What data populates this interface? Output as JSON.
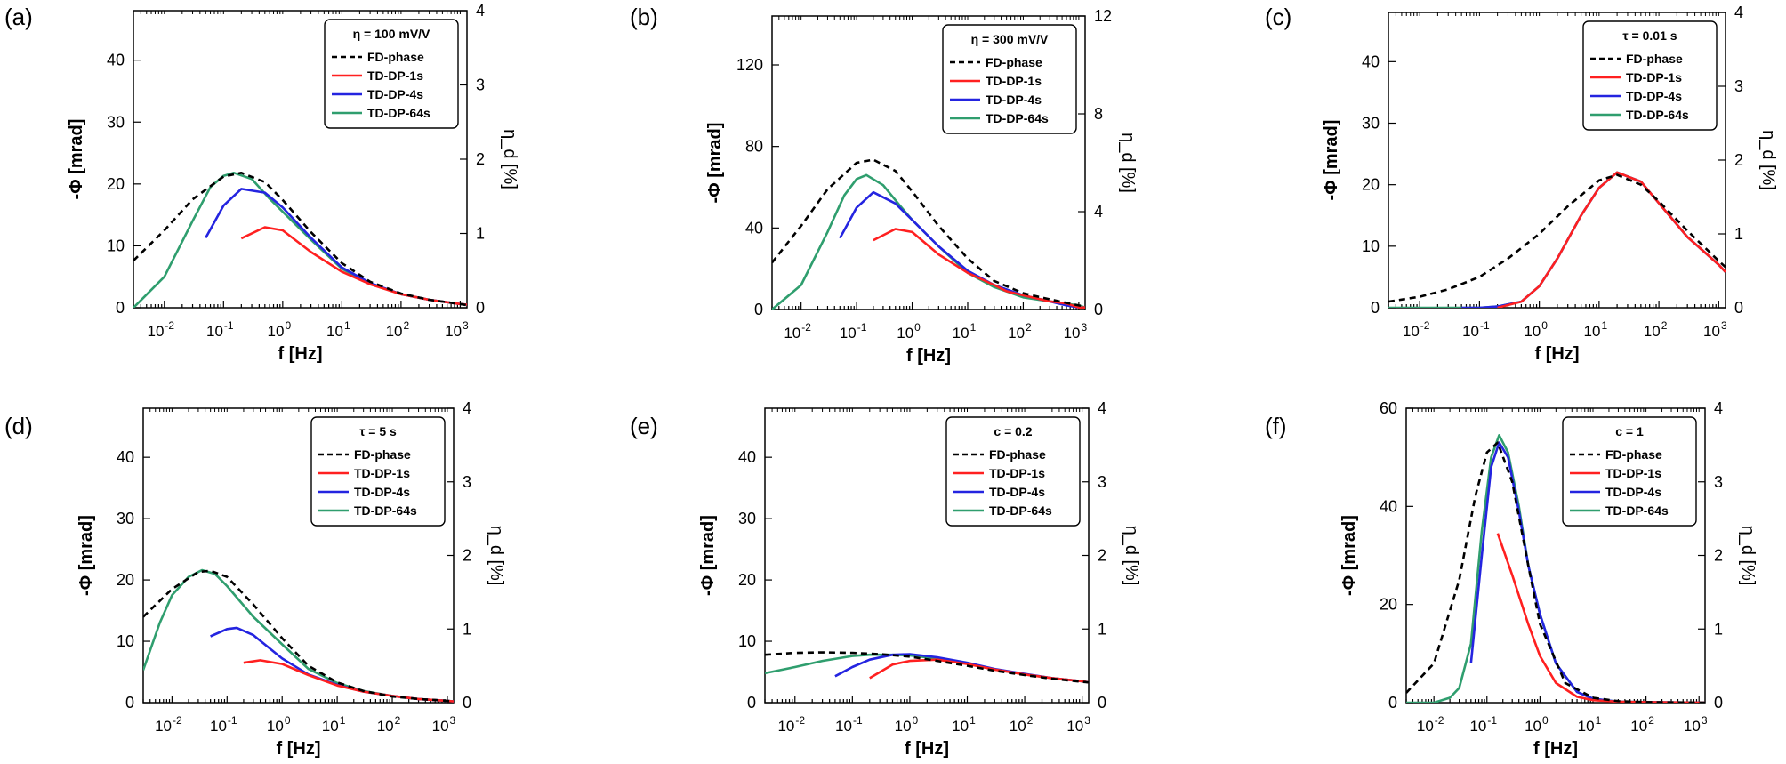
{
  "chart_data": [
    {
      "panel": "(a)",
      "type": "line",
      "xscale": "log",
      "xlabel": "f [Hz]",
      "ylabel": "-Φ [mrad]",
      "y2label": "η_d [%]",
      "xlim": [
        0.003,
        1300
      ],
      "ylim": [
        0,
        48
      ],
      "y2lim": [
        0,
        4
      ],
      "yticks": [
        0,
        10,
        20,
        30,
        40
      ],
      "y2ticks": [
        0,
        1,
        2,
        3,
        4
      ],
      "legend_title": "η = 100 mV/V",
      "legend_position": "top-right",
      "series": [
        {
          "name": "FD-phase",
          "color": "#000000",
          "dash": true,
          "x": [
            0.003,
            0.01,
            0.03,
            0.1,
            0.2,
            0.5,
            1,
            3,
            10,
            30,
            100,
            300,
            1000,
            1300
          ],
          "y": [
            7.6,
            12.5,
            17.5,
            21.2,
            21.8,
            20.3,
            17.4,
            12.2,
            7.2,
            4.2,
            2.3,
            1.3,
            0.6,
            0.4
          ]
        },
        {
          "name": "TD-DP-1s",
          "color": "#ff2020",
          "dash": false,
          "x": [
            0.2,
            0.5,
            1,
            3,
            10,
            30,
            100,
            300,
            1000,
            1300
          ],
          "y": [
            11.2,
            13.0,
            12.5,
            9.0,
            5.8,
            3.8,
            2.2,
            1.3,
            0.6,
            0.5
          ]
        },
        {
          "name": "TD-DP-4s",
          "color": "#2424e0",
          "dash": false,
          "x": [
            0.05,
            0.1,
            0.2,
            0.5,
            1,
            3,
            10,
            30,
            100,
            300,
            1000,
            1300
          ],
          "y": [
            11.3,
            16.5,
            19.2,
            18.6,
            16.2,
            11.3,
            6.5,
            4.0,
            2.2,
            1.3,
            0.6,
            0.5
          ]
        },
        {
          "name": "TD-DP-64s",
          "color": "#2f9e6e",
          "dash": false,
          "x": [
            0.003,
            0.01,
            0.03,
            0.06,
            0.1,
            0.15,
            0.3,
            0.6,
            1,
            3,
            10,
            30,
            100,
            300,
            1000,
            1300
          ],
          "y": [
            0,
            5,
            14,
            19.5,
            21.3,
            21.8,
            20.8,
            17.6,
            15.5,
            11,
            6.3,
            3.9,
            2.2,
            1.3,
            0.6,
            0.5
          ]
        }
      ]
    },
    {
      "panel": "(b)",
      "type": "line",
      "xscale": "log",
      "xlabel": "f [Hz]",
      "ylabel": "-Φ [mrad]",
      "y2label": "η_d [%]",
      "xlim": [
        0.003,
        1300
      ],
      "ylim": [
        0,
        144
      ],
      "y2lim": [
        0,
        12
      ],
      "yticks": [
        0,
        40,
        80,
        120
      ],
      "y2ticks": [
        0,
        4,
        8,
        12
      ],
      "legend_title": "η = 300 mV/V",
      "legend_position": "top-right",
      "series": [
        {
          "name": "FD-phase",
          "color": "#000000",
          "dash": true,
          "x": [
            0.003,
            0.01,
            0.03,
            0.1,
            0.2,
            0.5,
            1,
            3,
            10,
            30,
            100,
            300,
            1000,
            1300
          ],
          "y": [
            23,
            41,
            59,
            72,
            73.5,
            68,
            58,
            41,
            25,
            14,
            8,
            5,
            2,
            1.5
          ]
        },
        {
          "name": "TD-DP-1s",
          "color": "#ff2020",
          "dash": false,
          "x": [
            0.2,
            0.5,
            1,
            3,
            10,
            30,
            50,
            100,
            300,
            600,
            1000,
            1300
          ],
          "y": [
            34,
            39.5,
            38,
            27,
            18,
            12,
            9,
            7,
            4,
            3,
            1,
            1
          ]
        },
        {
          "name": "TD-DP-4s",
          "color": "#2424e0",
          "dash": false,
          "x": [
            0.05,
            0.1,
            0.2,
            0.5,
            1,
            3,
            10,
            30,
            100,
            300,
            600,
            1000,
            1300
          ],
          "y": [
            35,
            50,
            57.5,
            52,
            44,
            31,
            19,
            12,
            7,
            4,
            2,
            1,
            1
          ]
        },
        {
          "name": "TD-DP-64s",
          "color": "#2f9e6e",
          "dash": false,
          "x": [
            0.003,
            0.01,
            0.03,
            0.06,
            0.1,
            0.15,
            0.3,
            0.6,
            1,
            3,
            10,
            30,
            100,
            300,
            1000,
            1300
          ],
          "y": [
            0,
            12,
            38,
            56,
            64,
            66,
            61,
            51,
            44,
            31,
            18,
            11,
            6,
            4,
            2,
            1
          ]
        }
      ]
    },
    {
      "panel": "(c)",
      "type": "line",
      "xscale": "log",
      "xlabel": "f [Hz]",
      "ylabel": "-Φ [mrad]",
      "y2label": "η_d [%]",
      "xlim": [
        0.003,
        1300
      ],
      "ylim": [
        0,
        48
      ],
      "y2lim": [
        0,
        4
      ],
      "yticks": [
        0,
        10,
        20,
        30,
        40
      ],
      "y2ticks": [
        0,
        1,
        2,
        3,
        4
      ],
      "legend_title": "τ = 0.01 s",
      "legend_position": "top-right",
      "series": [
        {
          "name": "FD-phase",
          "color": "#000000",
          "dash": true,
          "x": [
            0.003,
            0.01,
            0.03,
            0.1,
            0.3,
            1,
            3,
            10,
            20,
            50,
            100,
            300,
            1000,
            1300
          ],
          "y": [
            1,
            1.8,
            3.0,
            5.0,
            8.0,
            12.0,
            16.5,
            20.7,
            21.6,
            20.0,
            17.3,
            12.5,
            7.6,
            6.6
          ]
        },
        {
          "name": "TD-DP-1s",
          "color": "#ff2020",
          "dash": false,
          "x": [
            0.2,
            0.5,
            1,
            2,
            5,
            10,
            20,
            50,
            100,
            300,
            1000,
            1300
          ],
          "y": [
            0,
            1,
            3.5,
            8,
            15,
            19.5,
            22,
            20.5,
            17,
            11.5,
            7,
            5.8
          ]
        },
        {
          "name": "TD-DP-4s",
          "color": "#2424e0",
          "dash": false,
          "x": [
            0.05,
            0.1,
            0.2,
            0.5,
            1,
            2,
            5,
            10,
            20,
            50,
            100,
            300,
            1000,
            1300
          ],
          "y": [
            0,
            0,
            0.2,
            1,
            3.5,
            8,
            15,
            19.5,
            22,
            20.5,
            17,
            11.5,
            7,
            5.8
          ]
        },
        {
          "name": "TD-DP-64s",
          "color": "#2f9e6e",
          "dash": false,
          "x": [
            0.003,
            0.01,
            0.1,
            0.2,
            0.5,
            1,
            2,
            5,
            10,
            20,
            50,
            100,
            300,
            1000,
            1300
          ],
          "y": [
            0,
            0,
            0,
            0.2,
            1,
            3.5,
            8,
            15,
            19.5,
            22,
            20.5,
            17,
            11.5,
            7,
            5.8
          ]
        }
      ]
    },
    {
      "panel": "(d)",
      "type": "line",
      "xscale": "log",
      "xlabel": "f [Hz]",
      "ylabel": "-Φ [mrad]",
      "y2label": "η_d [%]",
      "xlim": [
        0.003,
        1300
      ],
      "ylim": [
        0,
        48
      ],
      "y2lim": [
        0,
        4
      ],
      "yticks": [
        0,
        10,
        20,
        30,
        40
      ],
      "y2ticks": [
        0,
        1,
        2,
        3,
        4
      ],
      "legend_title": "τ = 5 s",
      "legend_position": "top-right",
      "series": [
        {
          "name": "FD-phase",
          "color": "#000000",
          "dash": true,
          "x": [
            0.003,
            0.01,
            0.03,
            0.05,
            0.1,
            0.3,
            1,
            3,
            10,
            30,
            100,
            300,
            1000,
            1300
          ],
          "y": [
            14,
            18.5,
            21.3,
            21.5,
            20.5,
            16,
            10.5,
            6,
            3.3,
            1.9,
            1.0,
            0.6,
            0.3,
            0.2
          ]
        },
        {
          "name": "TD-DP-1s",
          "color": "#ff2020",
          "dash": false,
          "x": [
            0.2,
            0.4,
            1,
            3,
            10,
            30,
            100,
            300,
            1000,
            1300
          ],
          "y": [
            6.5,
            6.9,
            6.3,
            4.5,
            2.8,
            1.8,
            1.1,
            0.6,
            0.3,
            0.2
          ]
        },
        {
          "name": "TD-DP-4s",
          "color": "#2424e0",
          "dash": false,
          "x": [
            0.05,
            0.1,
            0.15,
            0.3,
            1,
            3,
            10,
            30,
            100,
            300,
            1000,
            1300
          ],
          "y": [
            10.8,
            12,
            12.2,
            11,
            7.2,
            4.6,
            2.9,
            1.8,
            1.1,
            0.6,
            0.3,
            0.2
          ]
        },
        {
          "name": "TD-DP-64s",
          "color": "#2f9e6e",
          "dash": false,
          "x": [
            0.003,
            0.006,
            0.01,
            0.02,
            0.035,
            0.06,
            0.1,
            0.3,
            1,
            3,
            10,
            30,
            100,
            300,
            1000,
            1300
          ],
          "y": [
            5.3,
            13,
            17.5,
            20.5,
            21.6,
            21,
            19,
            14,
            9.5,
            5.5,
            3.2,
            1.9,
            1.1,
            0.6,
            0.3,
            0.2
          ]
        }
      ]
    },
    {
      "panel": "(e)",
      "type": "line",
      "xscale": "log",
      "xlabel": "f [Hz]",
      "ylabel": "-Φ [mrad]",
      "y2label": "η_d [%]",
      "xlim": [
        0.003,
        1300
      ],
      "ylim": [
        0,
        48
      ],
      "y2lim": [
        0,
        4
      ],
      "yticks": [
        0,
        10,
        20,
        30,
        40
      ],
      "y2ticks": [
        0,
        1,
        2,
        3,
        4
      ],
      "legend_title": "c = 0.2",
      "legend_position": "top-right",
      "series": [
        {
          "name": "FD-phase",
          "color": "#000000",
          "dash": true,
          "x": [
            0.003,
            0.01,
            0.03,
            0.1,
            0.3,
            1,
            3,
            10,
            30,
            100,
            300,
            1000,
            1300
          ],
          "y": [
            7.8,
            8.1,
            8.2,
            8.1,
            7.9,
            7.5,
            6.8,
            6.0,
            5.2,
            4.5,
            3.9,
            3.4,
            3.3
          ]
        },
        {
          "name": "TD-DP-1s",
          "color": "#ff2020",
          "dash": false,
          "x": [
            0.2,
            0.5,
            1,
            3,
            10,
            30,
            100,
            300,
            1000,
            1300
          ],
          "y": [
            4,
            6.2,
            6.8,
            7.0,
            6.3,
            5.4,
            4.6,
            4.0,
            3.5,
            3.3
          ]
        },
        {
          "name": "TD-DP-4s",
          "color": "#2424e0",
          "dash": false,
          "x": [
            0.05,
            0.1,
            0.2,
            0.5,
            1,
            3,
            10,
            30,
            100,
            300,
            1000,
            1300
          ],
          "y": [
            4.3,
            5.8,
            7.0,
            7.8,
            7.9,
            7.4,
            6.5,
            5.5,
            4.7,
            4.0,
            3.5,
            3.3
          ]
        },
        {
          "name": "TD-DP-64s",
          "color": "#2f9e6e",
          "dash": false,
          "x": [
            0.003,
            0.01,
            0.03,
            0.1,
            0.2,
            0.5,
            1,
            3,
            10,
            30,
            100,
            300,
            1000,
            1300
          ],
          "y": [
            4.8,
            5.8,
            6.8,
            7.6,
            7.8,
            7.8,
            7.7,
            7.2,
            6.4,
            5.4,
            4.6,
            4.0,
            3.5,
            3.3
          ]
        }
      ]
    },
    {
      "panel": "(f)",
      "type": "line",
      "xscale": "log",
      "xlabel": "f [Hz]",
      "ylabel": "-Φ [mrad]",
      "y2label": "η_d [%]",
      "xlim": [
        0.003,
        1300
      ],
      "ylim": [
        0,
        60
      ],
      "y2lim": [
        0,
        4
      ],
      "yticks": [
        0,
        20,
        40,
        60
      ],
      "y2ticks": [
        0,
        1,
        2,
        3,
        4
      ],
      "legend_title": "c = 1",
      "legend_position": "top-right",
      "series": [
        {
          "name": "FD-phase",
          "color": "#000000",
          "dash": true,
          "x": [
            0.003,
            0.01,
            0.03,
            0.06,
            0.1,
            0.16,
            0.3,
            0.6,
            1,
            3,
            10,
            30,
            100,
            1300
          ],
          "y": [
            2,
            8,
            25,
            42,
            51,
            53,
            45,
            28,
            16,
            4,
            1,
            0.3,
            0.1,
            0
          ]
        },
        {
          "name": "TD-DP-1s",
          "color": "#ff2020",
          "dash": false,
          "x": [
            0.16,
            0.3,
            0.6,
            1,
            2,
            5,
            10,
            30,
            100,
            1300
          ],
          "y": [
            34.5,
            26,
            16,
            9.5,
            4,
            1.2,
            0.5,
            0.2,
            0.1,
            0
          ]
        },
        {
          "name": "TD-DP-4s",
          "color": "#2424e0",
          "dash": false,
          "x": [
            0.05,
            0.08,
            0.12,
            0.17,
            0.25,
            0.4,
            0.6,
            1,
            2,
            5,
            10,
            30,
            100,
            1300
          ],
          "y": [
            8,
            30,
            48,
            53,
            50,
            39,
            28,
            18,
            8,
            2.2,
            0.8,
            0.2,
            0.1,
            0
          ]
        },
        {
          "name": "TD-DP-64s",
          "color": "#2f9e6e",
          "dash": false,
          "x": [
            0.003,
            0.01,
            0.02,
            0.03,
            0.05,
            0.08,
            0.12,
            0.17,
            0.25,
            0.4,
            0.6,
            1,
            2,
            5,
            10,
            30,
            100,
            1300
          ],
          "y": [
            0,
            0,
            1,
            3,
            12,
            35,
            50,
            54.5,
            51,
            40,
            28,
            18,
            8,
            2.2,
            0.8,
            0.2,
            0.1,
            0
          ]
        }
      ]
    }
  ]
}
